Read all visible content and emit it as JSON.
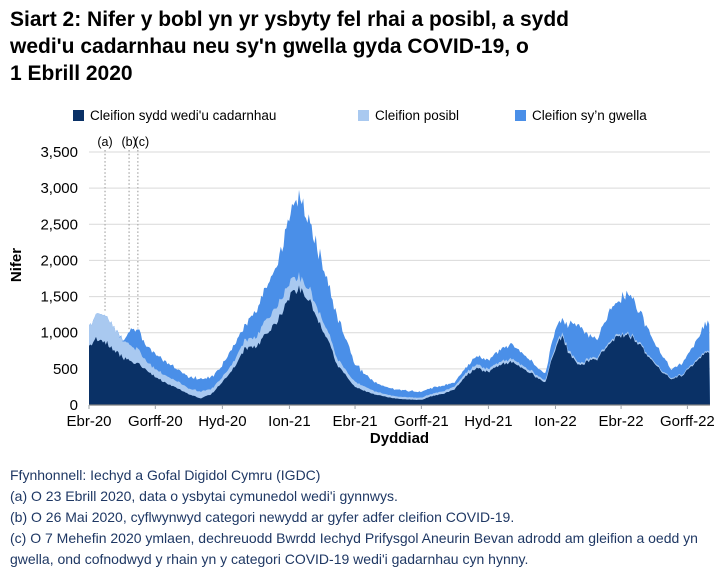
{
  "title": {
    "lines": [
      "Siart 2: Nifer y bobl yn yr ysbyty fel rhai a posibl, a sydd",
      "wedi'u cadarnhau neu sy'n gwella gyda COVID-19, o",
      "1 Ebrill 2020"
    ]
  },
  "axes": {
    "y": {
      "label": "Nifer",
      "max": 3500,
      "ticks": [
        {
          "value": 0,
          "label": "0"
        },
        {
          "value": 500,
          "label": "500"
        },
        {
          "value": 1000,
          "label": "1,000"
        },
        {
          "value": 1500,
          "label": "1,500"
        },
        {
          "value": 2000,
          "label": "2,000"
        },
        {
          "value": 2500,
          "label": "2,500"
        },
        {
          "value": 3000,
          "label": "3,000"
        },
        {
          "value": 3500,
          "label": "3,500"
        }
      ]
    },
    "x": {
      "label": "Dyddiad",
      "ticks": [
        {
          "date": "2020-04-01",
          "label": "Ebr-20"
        },
        {
          "date": "2020-07-01",
          "label": "Gorff-20"
        },
        {
          "date": "2020-10-01",
          "label": "Hyd-20"
        },
        {
          "date": "2021-01-01",
          "label": "Ion-21"
        },
        {
          "date": "2021-04-01",
          "label": "Ebr-21"
        },
        {
          "date": "2021-07-01",
          "label": "Gorff-21"
        },
        {
          "date": "2021-10-01",
          "label": "Hyd-21"
        },
        {
          "date": "2022-01-01",
          "label": "Ion-22"
        },
        {
          "date": "2022-04-01",
          "label": "Ebr-22"
        },
        {
          "date": "2022-07-01",
          "label": "Gorff-22"
        }
      ]
    }
  },
  "annotations": [
    {
      "label": "(a)",
      "date": "2020-04-23",
      "drop_to_value": 1300
    },
    {
      "label": "(b)",
      "date": "2020-05-26",
      "drop_to_value": 1040
    },
    {
      "label": "(c)",
      "date": "2020-06-07",
      "drop_to_value": 1060
    }
  ],
  "chart_data": {
    "type": "area",
    "stacked": true,
    "title": "Siart 2: Nifer y bobl yn yr ysbyty fel rhai a posibl, a sydd wedi'u cadarnhau neu sy'n gwella gyda COVID-19, o 1 Ebrill 2020",
    "xlabel": "Dyddiad",
    "ylabel": "Nifer",
    "ylim": [
      0,
      3500
    ],
    "x_range": [
      "2020-04-01",
      "2022-08-01"
    ],
    "grid": "horizontal",
    "legend_position": "top",
    "dates": [
      "2020-04-01",
      "2020-04-12",
      "2020-04-23",
      "2020-05-05",
      "2020-05-20",
      "2020-05-29",
      "2020-06-07",
      "2020-06-18",
      "2020-07-01",
      "2020-07-16",
      "2020-08-01",
      "2020-08-16",
      "2020-09-01",
      "2020-09-16",
      "2020-10-01",
      "2020-10-16",
      "2020-11-01",
      "2020-11-16",
      "2020-12-01",
      "2020-12-16",
      "2021-01-01",
      "2021-01-12",
      "2021-01-25",
      "2021-02-08",
      "2021-02-22",
      "2021-03-08",
      "2021-03-22",
      "2021-04-01",
      "2021-04-15",
      "2021-05-01",
      "2021-05-15",
      "2021-06-01",
      "2021-06-15",
      "2021-07-01",
      "2021-07-15",
      "2021-08-01",
      "2021-08-15",
      "2021-09-01",
      "2021-09-15",
      "2021-10-01",
      "2021-10-15",
      "2021-11-01",
      "2021-11-15",
      "2021-12-01",
      "2021-12-18",
      "2022-01-01",
      "2022-01-10",
      "2022-01-20",
      "2022-02-01",
      "2022-02-15",
      "2022-03-01",
      "2022-03-15",
      "2022-04-01",
      "2022-04-12",
      "2022-04-25",
      "2022-05-10",
      "2022-05-25",
      "2022-06-10",
      "2022-06-25",
      "2022-07-10",
      "2022-07-25",
      "2022-08-01"
    ],
    "series": [
      {
        "name": "Cleifion sydd wedi'u cadarnhau",
        "color": "#0a3166",
        "values": [
          820,
          920,
          880,
          760,
          640,
          590,
          570,
          490,
          390,
          300,
          225,
          150,
          90,
          150,
          320,
          500,
          780,
          800,
          990,
          1155,
          1475,
          1620,
          1500,
          1200,
          900,
          550,
          380,
          250,
          190,
          140,
          110,
          85,
          75,
          70,
          120,
          160,
          210,
          420,
          500,
          460,
          550,
          600,
          520,
          420,
          300,
          800,
          950,
          700,
          550,
          600,
          650,
          850,
          970,
          960,
          850,
          650,
          480,
          350,
          420,
          580,
          700,
          720
        ]
      },
      {
        "name": "Cleifion posibl",
        "color": "#a9c9f0",
        "values": [
          280,
          350,
          390,
          330,
          230,
          210,
          200,
          120,
          110,
          100,
          95,
          80,
          95,
          70,
          70,
          90,
          125,
          130,
          195,
          210,
          195,
          170,
          160,
          150,
          120,
          90,
          70,
          70,
          60,
          40,
          35,
          30,
          30,
          30,
          35,
          35,
          40,
          40,
          50,
          40,
          45,
          45,
          40,
          35,
          30,
          40,
          40,
          35,
          30,
          30,
          25,
          25,
          25,
          25,
          25,
          20,
          20,
          15,
          15,
          20,
          20,
          20
        ]
      },
      {
        "name": "Cleifion sy’n gwella",
        "color": "#4a8fe8",
        "values": [
          0,
          0,
          0,
          0,
          20,
          230,
          280,
          210,
          210,
          190,
          180,
          160,
          175,
          160,
          170,
          215,
          210,
          370,
          430,
          625,
          880,
          1060,
          1000,
          850,
          680,
          560,
          400,
          250,
          180,
          120,
          95,
          95,
          85,
          80,
          85,
          75,
          60,
          70,
          120,
          125,
          155,
          205,
          160,
          125,
          90,
          250,
          190,
          380,
          500,
          320,
          250,
          425,
          500,
          555,
          450,
          330,
          220,
          125,
          165,
          250,
          370,
          380
        ]
      }
    ]
  },
  "footer": {
    "lines": [
      "Ffynhonnell: Iechyd a Gofal Digidol Cymru (IGDC)",
      "(a) O 23 Ebrill 2020, data o ysbytai cymunedol wedi'i gynnwys.",
      "(b) O 26 Mai 2020, cyflwynwyd categori newydd ar gyfer adfer cleifion COVID-19.",
      "(c) O 7 Mehefin 2020 ymlaen, dechreuodd Bwrdd Iechyd Prifysgol Aneurin Bevan adrodd am gleifion a oedd yn gwella, ond cofnodwyd y rhain yn y categori COVID-19 wedi'i gadarnhau cyn hynny."
    ]
  },
  "colors": {
    "confirmed": "#0a3166",
    "possible": "#a9c9f0",
    "recovering": "#4a8fe8",
    "grid": "#d9d9d9",
    "axis": "#7f7f7f",
    "tick": "#9aa0a6",
    "annotation_line": "#b3b3b3",
    "footer_text": "#1f3864",
    "background": "#ffffff"
  }
}
